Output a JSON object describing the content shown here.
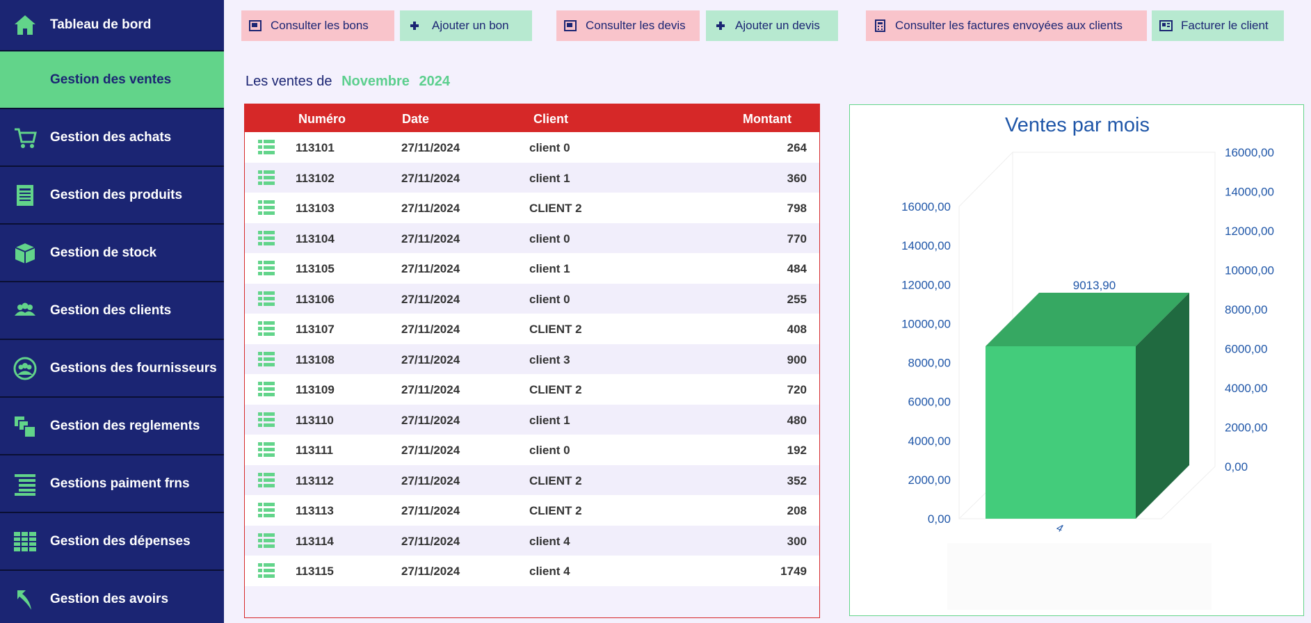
{
  "sidebar": {
    "items": [
      {
        "label": "Tableau de bord",
        "icon": "home-icon"
      },
      {
        "label": "Gestion des ventes",
        "icon": "cart-icon",
        "active": true
      },
      {
        "label": "Gestion des achats",
        "icon": "cart-icon"
      },
      {
        "label": "Gestion des produits",
        "icon": "document-icon"
      },
      {
        "label": "Gestion de stock",
        "icon": "box-icon"
      },
      {
        "label": "Gestion des clients",
        "icon": "users-icon"
      },
      {
        "label": "Gestions des  fournisseurs",
        "icon": "group-circle-icon"
      },
      {
        "label": "Gestion des reglements",
        "icon": "copy-icon"
      },
      {
        "label": "Gestions paiment frns",
        "icon": "list-icon"
      },
      {
        "label": "Gestion des dépenses",
        "icon": "table-icon"
      },
      {
        "label": "Gestion des avoirs",
        "icon": "return-arrow-icon"
      }
    ]
  },
  "toolbar": {
    "consult_bons": "Consulter les bons",
    "add_bon": "Ajouter un bon",
    "consult_devis": "Consulter les devis",
    "add_devis": "Ajouter un devis",
    "consult_factures": "Consulter les factures envoyées aux clients",
    "facturer": "Facturer le client"
  },
  "period": {
    "prefix": "Les ventes de",
    "month": "Novembre",
    "year": "2024"
  },
  "table": {
    "headers": {
      "numero": "Numéro",
      "date": "Date",
      "client": "Client",
      "montant": "Montant"
    },
    "rows": [
      {
        "numero": "113101",
        "date": "27/11/2024",
        "client": "client  0",
        "montant": "264"
      },
      {
        "numero": "113102",
        "date": "27/11/2024",
        "client": "client 1",
        "montant": "360"
      },
      {
        "numero": "113103",
        "date": "27/11/2024",
        "client": "CLIENT 2",
        "montant": "798"
      },
      {
        "numero": "113104",
        "date": "27/11/2024",
        "client": "client  0",
        "montant": "770"
      },
      {
        "numero": "113105",
        "date": "27/11/2024",
        "client": "client 1",
        "montant": "484"
      },
      {
        "numero": "113106",
        "date": "27/11/2024",
        "client": "client  0",
        "montant": "255"
      },
      {
        "numero": "113107",
        "date": "27/11/2024",
        "client": "CLIENT 2",
        "montant": "408"
      },
      {
        "numero": "113108",
        "date": "27/11/2024",
        "client": "client 3",
        "montant": "900"
      },
      {
        "numero": "113109",
        "date": "27/11/2024",
        "client": "CLIENT 2",
        "montant": "720"
      },
      {
        "numero": "113110",
        "date": "27/11/2024",
        "client": "client 1",
        "montant": "480"
      },
      {
        "numero": "113111",
        "date": "27/11/2024",
        "client": "client  0",
        "montant": "192"
      },
      {
        "numero": "113112",
        "date": "27/11/2024",
        "client": "CLIENT 2",
        "montant": "352"
      },
      {
        "numero": "113113",
        "date": "27/11/2024",
        "client": "CLIENT 2",
        "montant": "208"
      },
      {
        "numero": "113114",
        "date": "27/11/2024",
        "client": "client 4",
        "montant": "300"
      },
      {
        "numero": "113115",
        "date": "27/11/2024",
        "client": "client 4",
        "montant": "1749"
      }
    ]
  },
  "colors": {
    "sidebar_bg": "#1b2573",
    "active_green": "#62d48a",
    "table_header_red": "#d62828",
    "bar_front": "#43cc7b",
    "bar_top": "#36a862",
    "bar_side": "#206a40",
    "chart_text": "#1f56a8"
  },
  "chart_data": {
    "type": "bar",
    "title": "Ventes par mois",
    "categories": [
      "4"
    ],
    "values": [
      9013.9
    ],
    "data_labels": [
      "9013,90"
    ],
    "ylim": [
      0,
      16000
    ],
    "y_ticks": [
      "0,00",
      "2000,00",
      "4000,00",
      "6000,00",
      "8000,00",
      "10000,00",
      "12000,00",
      "14000,00",
      "16000,00"
    ],
    "three_d": true,
    "secondary_axis": true,
    "grid": false,
    "legend": "none"
  }
}
